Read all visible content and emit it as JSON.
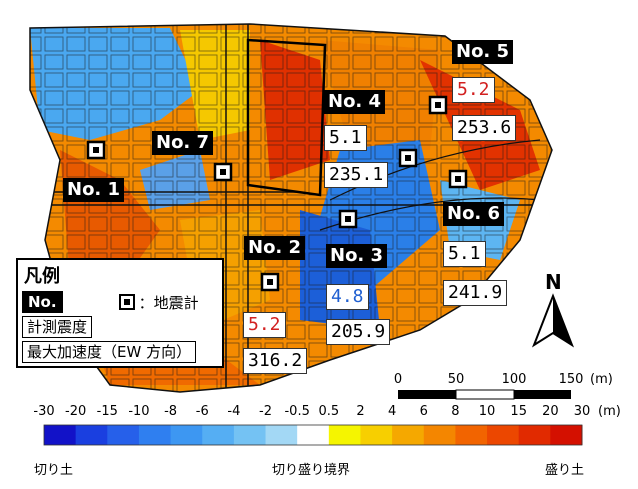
{
  "stations": [
    {
      "name": "No. 1",
      "intensity": "",
      "accel": "",
      "intensity_color": "#000000"
    },
    {
      "name": "No. 2",
      "intensity": "5.2",
      "accel": "316.2",
      "intensity_color": "#d22020"
    },
    {
      "name": "No. 3",
      "intensity": "4.8",
      "accel": "205.9",
      "intensity_color": "#1f5fd1"
    },
    {
      "name": "No. 4",
      "intensity": "5.1",
      "accel": "235.1",
      "intensity_color": "#000000"
    },
    {
      "name": "No. 5",
      "intensity": "5.2",
      "accel": "253.6",
      "intensity_color": "#d22020"
    },
    {
      "name": "No. 6",
      "intensity": "5.1",
      "accel": "241.9",
      "intensity_color": "#000000"
    },
    {
      "name": "No. 7",
      "intensity": "",
      "accel": "",
      "intensity_color": "#000000"
    }
  ],
  "legend": {
    "title": "凡例",
    "station_no": "No.",
    "seismometer": "：地震計",
    "intensity": "計測震度",
    "accel": "最大加速度（EW 方向）"
  },
  "north": "N",
  "scale_bar": {
    "ticks": [
      "0",
      "50",
      "100",
      "150"
    ],
    "unit": "(m)"
  },
  "colorbar": {
    "ticks": [
      "-30",
      "-20",
      "-15",
      "-10",
      "-8",
      "-6",
      "-4",
      "-2",
      "-0.5",
      "0.5",
      "2",
      "4",
      "6",
      "8",
      "10",
      "15",
      "20",
      "30"
    ],
    "unit": "(m)",
    "colors": [
      "#1212c8",
      "#1a3fe0",
      "#2660ea",
      "#2f7ff0",
      "#3d97f2",
      "#55aef3",
      "#74c2f3",
      "#a3d8f5",
      "#ffffff",
      "#f5f500",
      "#f7cf00",
      "#f5a800",
      "#f48600",
      "#f26400",
      "#ec4700",
      "#e12a00",
      "#d41000"
    ],
    "label_cut": "切り土",
    "label_border": "切り盛り境界",
    "label_fill": "盛り土"
  }
}
